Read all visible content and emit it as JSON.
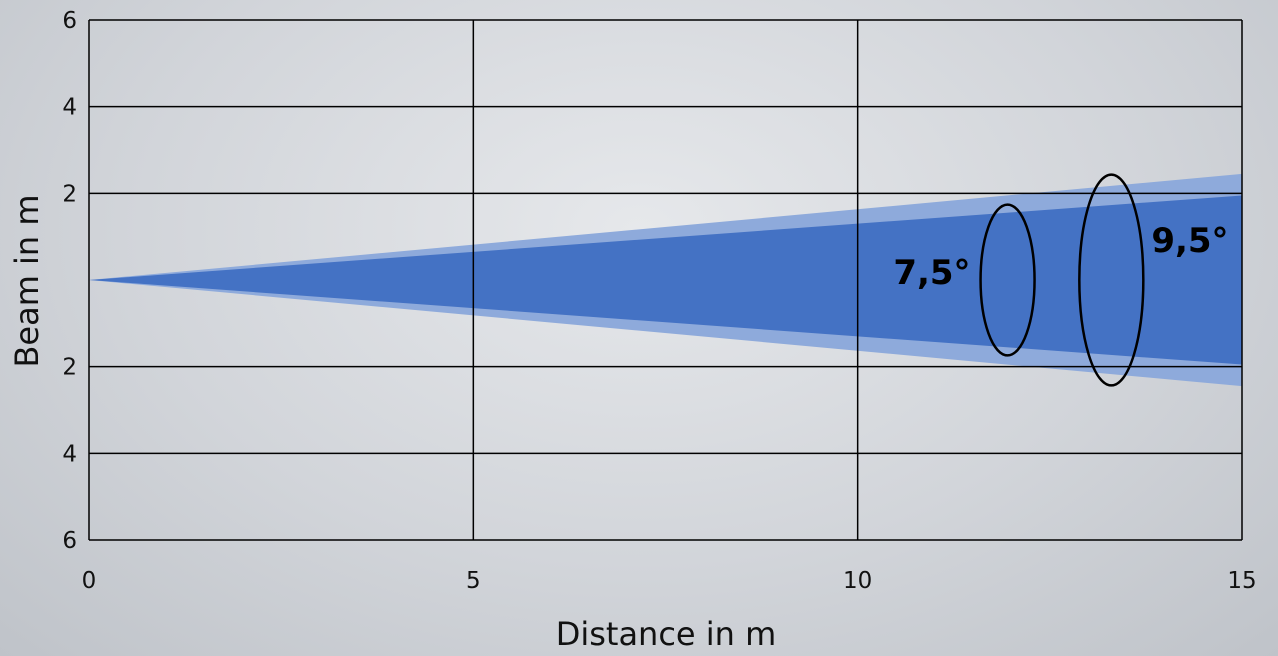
{
  "chart_data": {
    "type": "area",
    "title": "",
    "xlabel": "Distance in m",
    "ylabel": "Beam in m",
    "xlim": [
      0,
      15
    ],
    "ylim": [
      -6,
      6
    ],
    "x_ticks": [
      0,
      5,
      10,
      15
    ],
    "x_tick_labels": [
      "0",
      "5",
      "10",
      "15"
    ],
    "y_ticks": [
      6,
      4,
      2,
      -2,
      -4,
      -6
    ],
    "y_tick_labels": [
      "6",
      "4",
      "2",
      "2",
      "4",
      "6"
    ],
    "grid": true,
    "series": [
      {
        "x": [
          0,
          15
        ],
        "upper": [
          0,
          2.45
        ],
        "lower": [
          0,
          -2.45
        ],
        "color": "#8eaadb"
      },
      {
        "x": [
          0,
          15
        ],
        "upper": [
          0,
          1.95
        ],
        "lower": [
          0,
          -1.95
        ],
        "color": "#4472c4"
      }
    ],
    "annotations": [
      {
        "text": "7,5°",
        "x": 11.95
      },
      {
        "text": "9,5°",
        "x": 13.3
      }
    ]
  }
}
